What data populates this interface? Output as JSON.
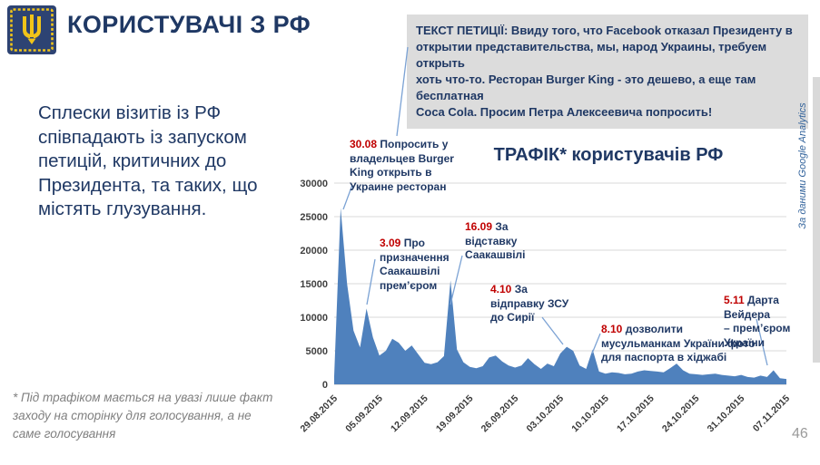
{
  "slide": {
    "title": "КОРИСТУВАЧІ З РФ",
    "lead_text": "Сплески візитів із РФ\nспівпадають із запуском\nпетицій, критичних до\nПрезидента, та таких, що\nмістять глузування.",
    "petition_text": "ТЕКСТ ПЕТИЦІЇ: Ввиду того, что Facebook отказал Президенту в\nоткрытии представительства, мы, народ Украины, требуем открыть\nхоть что-то. Ресторан Burger King - это дешево, а еще там бесплатная\nCoca Cola. Просим Петра Алексеевича попросить!",
    "source_note": "За даними Google Analytics",
    "footnote": "* Під трафіком мається на увазі лише факт\nзаходу на сторінку для голосування, а не\nсаме голосування",
    "page_number": "46",
    "logo_icon": "ukraine-coat-of-arms"
  },
  "colors": {
    "navy": "#1f3864",
    "red": "#c00000",
    "area_blue": "#4f81bd",
    "connector_blue": "#7ba2d4",
    "gridline": "#d9d9d9",
    "axis_line": "#bfbfbf",
    "petition_bg": "#dcdcdc",
    "grey_text": "#7f7f7f",
    "page_number_grey": "#9a9a9a",
    "logo_navy": "#2d4373",
    "logo_gold": "#f0c419"
  },
  "chart_data": {
    "type": "area",
    "title": "ТРАФІК* користувачів РФ",
    "xlabel": "",
    "ylabel": "",
    "grid": true,
    "legend": "none",
    "ylim": [
      0,
      30000
    ],
    "y_ticks": [
      0,
      5000,
      10000,
      15000,
      20000,
      25000,
      30000
    ],
    "x_tick_labels": [
      "29.08.2015",
      "05.09.2015",
      "12.09.2015",
      "19.09.2015",
      "26.09.2015",
      "03.10.2015",
      "10.10.2015",
      "17.10.2015",
      "24.10.2015",
      "31.10.2015",
      "07.11.2015"
    ],
    "x_tick_indices": [
      0,
      7,
      14,
      21,
      28,
      35,
      42,
      49,
      56,
      63,
      70
    ],
    "x_unit": "daily visits, 29.08.2015 – 07.11.2015",
    "values": [
      1200,
      26300,
      15000,
      8000,
      5500,
      11300,
      7000,
      4300,
      5000,
      6800,
      6200,
      5000,
      5800,
      4500,
      3200,
      3000,
      3300,
      4200,
      15500,
      5200,
      3300,
      2600,
      2400,
      2700,
      4000,
      4300,
      3400,
      2800,
      2500,
      2800,
      3900,
      3000,
      2300,
      3100,
      2700,
      4600,
      5600,
      5000,
      2800,
      2300,
      5200,
      1900,
      1600,
      1800,
      1700,
      1500,
      1600,
      1900,
      2100,
      2000,
      1900,
      1800,
      2400,
      3100,
      2100,
      1600,
      1500,
      1400,
      1500,
      1600,
      1400,
      1300,
      1200,
      1400,
      1100,
      1000,
      1300,
      1100,
      2100,
      900,
      800
    ],
    "annotations": [
      {
        "date": "30.08",
        "text": "Попросить у\nвладельцев Burger\nKing открыть в\nУкраине ресторан",
        "day_index": 1,
        "value": 26300
      },
      {
        "date": "3.09",
        "text": "Про\nпризначення\nСаакашвілі\nпрем’єром",
        "day_index": 5,
        "value": 11300
      },
      {
        "date": "16.09",
        "text": "За\nвідставку\nСаакашвілі",
        "day_index": 18,
        "value": 15500
      },
      {
        "date": "4.10",
        "text": "За\nвідправку ЗСУ\nдо Сирії",
        "day_index": 36,
        "value": 5600
      },
      {
        "date": "8.10",
        "text": "дозволити\nмусульманкам України фото\nдля паспорта в хіджабі",
        "day_index": 40,
        "value": 5200
      },
      {
        "date": "5.11",
        "text": "Дарта Вейдера\n– прем’єром України",
        "day_index": 68,
        "value": 2100
      }
    ]
  }
}
